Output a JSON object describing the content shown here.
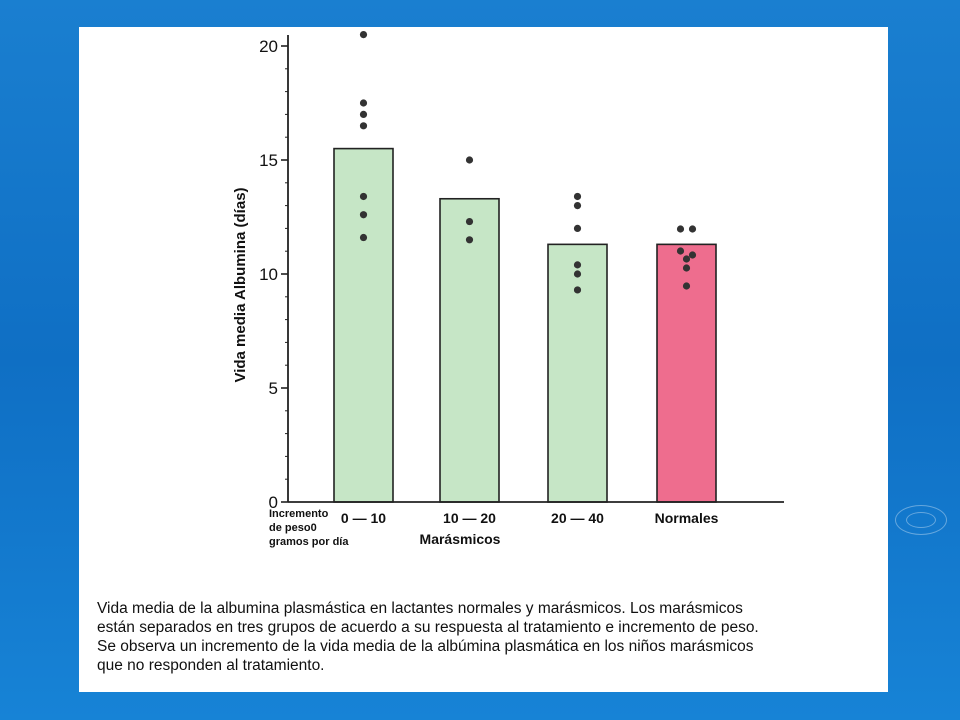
{
  "chart_data": {
    "type": "bar",
    "ylabel": "Vida media Albumina (días)",
    "ylim": [
      0,
      20
    ],
    "yticks": [
      0,
      5,
      10,
      15,
      20
    ],
    "xaxis_side_label": [
      "Incremento",
      "de peso0",
      "gramos por día"
    ],
    "group_label": "Marásmicos",
    "categories": [
      "0 — 10",
      "10 — 20",
      "20 — 40",
      "Normales"
    ],
    "values": [
      15.5,
      13.3,
      11.3,
      11.3
    ],
    "bar_colors": [
      "#c6e6c6",
      "#c6e6c6",
      "#c6e6c6",
      "#ee6d8e"
    ],
    "points": [
      [
        20.5,
        17.5,
        17.0,
        16.5,
        13.4,
        12.6,
        11.6
      ],
      [
        15.0,
        12.3,
        11.5
      ],
      [
        13.4,
        13.0,
        12.0,
        10.4,
        10.0,
        9.3
      ],
      [
        12.0,
        12.0,
        11.2,
        11.0,
        10.8,
        10.3,
        9.6
      ]
    ],
    "grid": false
  },
  "caption": [
    "Vida media de la albumina plasmástica en lactantes normales y marásmicos. Los marásmicos",
    "están  separados en tres grupos de acuerdo a su respuesta al tratamiento e incremento de peso.",
    "Se observa un incremento de la vida media de la albúmina plasmática en los niños marásmicos",
    "que no responden al tratamiento."
  ],
  "colors": {
    "background": "#1474c8",
    "panel": "#ffffff",
    "axis": "#222222",
    "dot": "#333333"
  }
}
